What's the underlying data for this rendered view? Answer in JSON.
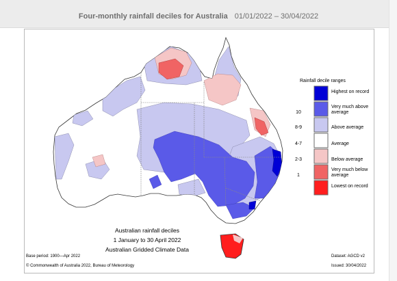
{
  "header": {
    "title": "Four-monthly rainfall deciles for Australia",
    "dates": "01/01/2022 – 30/04/2022"
  },
  "legend": {
    "title": "Rainfall decile ranges",
    "items": [
      {
        "code": "",
        "label": "Highest on record",
        "color": "#0000d6"
      },
      {
        "code": "10",
        "label": "Very much above average",
        "color": "#5a5ae8"
      },
      {
        "code": "8-9",
        "label": "Above average",
        "color": "#c8c8f0"
      },
      {
        "code": "4-7",
        "label": "Average",
        "color": "#ffffff"
      },
      {
        "code": "2-3",
        "label": "Below average",
        "color": "#f5c6c6"
      },
      {
        "code": "1",
        "label": "Very much below average",
        "color": "#f06464"
      },
      {
        "code": "",
        "label": "Lowest on record",
        "color": "#ff1e1e"
      }
    ]
  },
  "caption": {
    "line1": "Australian rainfall deciles",
    "line2": "1 January to 30 April 2022",
    "line3": "Australian Gridded Climate Data"
  },
  "footer": {
    "base_period": "Base period: 1900—Apr 2022",
    "copyright": "© Commonwealth of Australia 2022, Bureau of Meteorology",
    "dataset": "Dataset: AGCD v2",
    "issued": "Issued: 30/04/2022"
  }
}
